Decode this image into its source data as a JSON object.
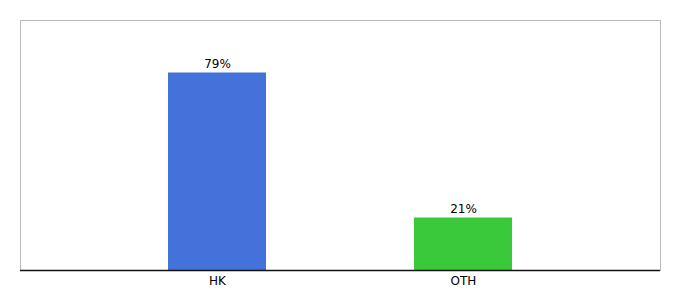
{
  "chart_data": {
    "type": "bar",
    "categories": [
      "HK",
      "OTH"
    ],
    "values": [
      79,
      21
    ],
    "value_labels": [
      "79%",
      "21%"
    ],
    "colors": [
      "#4472db",
      "#3ac93a"
    ],
    "ylim": [
      0,
      100
    ],
    "data_labels": true,
    "tick_labels": "x",
    "grid": false
  }
}
